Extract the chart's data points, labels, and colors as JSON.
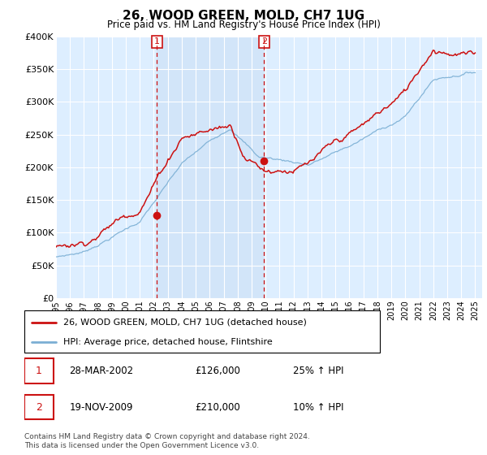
{
  "title": "26, WOOD GREEN, MOLD, CH7 1UG",
  "subtitle": "Price paid vs. HM Land Registry's House Price Index (HPI)",
  "legend_line1": "26, WOOD GREEN, MOLD, CH7 1UG (detached house)",
  "legend_line2": "HPI: Average price, detached house, Flintshire",
  "transaction1_date": "28-MAR-2002",
  "transaction1_price": "£126,000",
  "transaction1_hpi": "25% ↑ HPI",
  "transaction2_date": "19-NOV-2009",
  "transaction2_price": "£210,000",
  "transaction2_hpi": "10% ↑ HPI",
  "footnote": "Contains HM Land Registry data © Crown copyright and database right 2024.\nThis data is licensed under the Open Government Licence v3.0.",
  "hpi_color": "#7bafd4",
  "price_color": "#cc1111",
  "vline_color": "#cc1111",
  "shading_color": "#ddeeff",
  "background_color": "#ffffff",
  "grid_color": "#cccccc",
  "ylim": [
    0,
    400000
  ],
  "yticks": [
    0,
    50000,
    100000,
    150000,
    200000,
    250000,
    300000,
    350000,
    400000
  ],
  "vline1_x": 2002.23,
  "vline2_x": 2009.89,
  "marker1_x": 2002.23,
  "marker1_y": 126000,
  "marker2_x": 2009.89,
  "marker2_y": 210000,
  "xmin": 1995.0,
  "xmax": 2025.5
}
